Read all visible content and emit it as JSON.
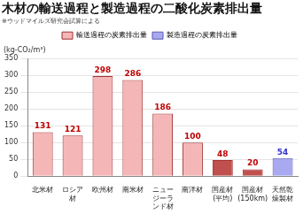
{
  "chart_data": {
    "type": "bar",
    "title": "木材の輸送過程と製造過程の二酸化炭素排出量",
    "subtitle": "※ウッドマイルズ研究会試算による",
    "y_label": "(kg-CO₂/m³)",
    "categories": [
      "北米材",
      "ロシア材",
      "欧州材",
      "南米材",
      "ニュージーランド材",
      "南洋材",
      "国産材(平均)",
      "国産材(150km)",
      "天然乾燥製材"
    ],
    "series": [
      {
        "name": "輸送過程の炭素排出量",
        "color": "#f4b6b6",
        "colors": [
          "#f4b6b6",
          "#f4b6b6",
          "#f4b6b6",
          "#f4b6b6",
          "#f4b6b6",
          "#f4b6b6",
          "#c0504d",
          "#c0504d",
          "#f4b6b6"
        ],
        "values": [
          131,
          121,
          298,
          286,
          186,
          100,
          48,
          20,
          null
        ]
      },
      {
        "name": "製造過程の炭素排出量",
        "color": "#a9a9f2",
        "values": [
          null,
          null,
          null,
          null,
          null,
          null,
          null,
          null,
          54
        ]
      }
    ],
    "ylim": [
      0,
      350
    ],
    "yticks": [
      0,
      50,
      100,
      150,
      200,
      250,
      300,
      350
    ],
    "grid": true,
    "legend": "top",
    "data_labels": true
  }
}
